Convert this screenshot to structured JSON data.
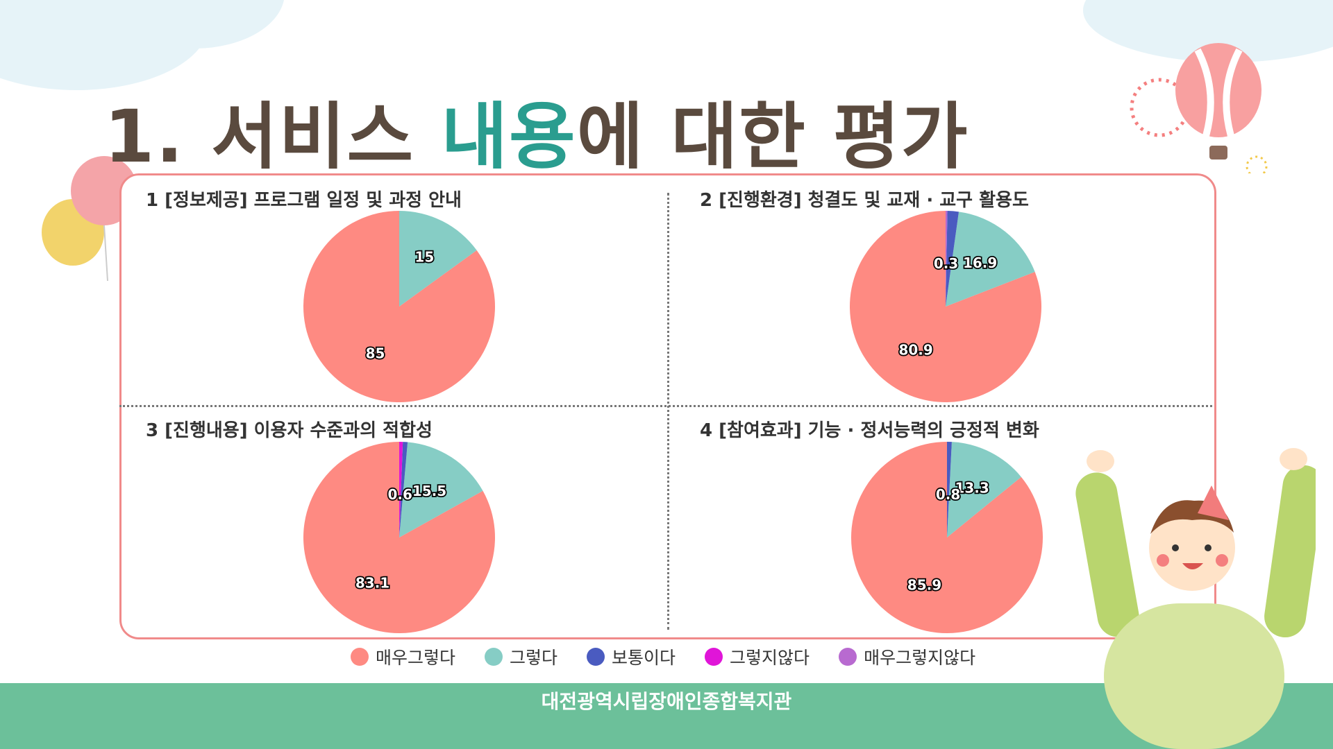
{
  "slide": {
    "title_prefix": "1. 서비스 ",
    "title_accent": "내용",
    "title_suffix": "에 대한 평가",
    "footer": "대전광역시립장애인종합복지관"
  },
  "legend": [
    {
      "label": "매우그렇다",
      "color": "#fe8a82"
    },
    {
      "label": "그렇다",
      "color": "#86cdc5"
    },
    {
      "label": "보통이다",
      "color": "#4a5bc0"
    },
    {
      "label": "그렇지않다",
      "color": "#e015d8"
    },
    {
      "label": "매우그렇지않다",
      "color": "#b86ad0"
    }
  ],
  "chart_data": [
    {
      "type": "pie",
      "title": "1 [정보제공] 프로그램 일정 및 과정 안내",
      "categories": [
        "매우그렇다",
        "그렇다",
        "보통이다",
        "그렇지않다",
        "매우그렇지않다"
      ],
      "values": [
        85,
        15,
        0,
        0,
        0
      ],
      "labels": [
        {
          "text": "85",
          "slice": 0
        },
        {
          "text": "15",
          "slice": 1
        }
      ]
    },
    {
      "type": "pie",
      "title": "2 [진행환경] 청결도 및 교재 · 교구 활용도",
      "categories": [
        "매우그렇다",
        "그렇다",
        "보통이다",
        "그렇지않다",
        "매우그렇지않다"
      ],
      "values": [
        80.9,
        16.9,
        1.9,
        0,
        0.3
      ],
      "labels": [
        {
          "text": "80.9",
          "slice": 0
        },
        {
          "text": "16.9",
          "slice": 1
        },
        {
          "text": "0.3",
          "slice": 4
        }
      ]
    },
    {
      "type": "pie",
      "title": "3 [진행내용] 이용자 수준과의 적합성",
      "categories": [
        "매우그렇다",
        "그렇다",
        "보통이다",
        "그렇지않다",
        "매우그렇지않다"
      ],
      "values": [
        83.1,
        15.5,
        0.8,
        0.6,
        0
      ],
      "labels": [
        {
          "text": "83.1",
          "slice": 0
        },
        {
          "text": "15.5",
          "slice": 1
        },
        {
          "text": "0.6",
          "slice": 3
        }
      ]
    },
    {
      "type": "pie",
      "title": "4 [참여효과] 기능 · 정서능력의 긍정적 변화",
      "categories": [
        "매우그렇다",
        "그렇다",
        "보통이다",
        "그렇지않다",
        "매우그렇지않다"
      ],
      "values": [
        85.9,
        13.3,
        0.8,
        0,
        0
      ],
      "labels": [
        {
          "text": "85.9",
          "slice": 0
        },
        {
          "text": "13.3",
          "slice": 1
        },
        {
          "text": "0.8",
          "slice": 2
        }
      ]
    }
  ]
}
